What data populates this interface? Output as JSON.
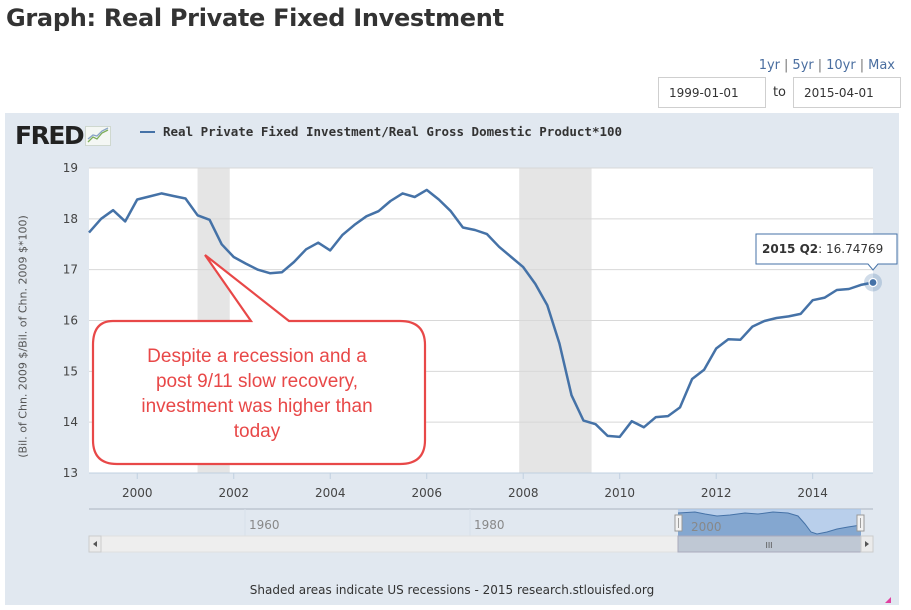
{
  "page": {
    "title": "Graph: Real Private Fixed Investment"
  },
  "range_controls": {
    "links": [
      "1yr",
      "5yr",
      "10yr",
      "Max"
    ],
    "start_date": "1999-01-01",
    "to_label": "to",
    "end_date": "2015-04-01"
  },
  "chart_header": {
    "logo_text": "FRED",
    "logo_icon": "chart-trend-icon"
  },
  "tooltip": {
    "label": "2015 Q2",
    "value": "16.74769"
  },
  "callout": {
    "lines": [
      "Despite a recession and a",
      "post 9/11 slow recovery,",
      "investment was higher than",
      "today"
    ],
    "border_color": "#e84848"
  },
  "navigator": {
    "ticks": [
      "1960",
      "1980",
      "2000"
    ],
    "scroll_grip": "III"
  },
  "footer": {
    "note": "Shaded areas indicate US recessions - 2015 research.stlouisfed.org"
  },
  "colors": {
    "series": "#4572a7",
    "panel_bg": "#e1e8f0",
    "recession": "#e5e5e5",
    "callout": "#e84848"
  },
  "chart_data": {
    "type": "line",
    "title": "Real Private Fixed Investment/Real Gross Domestic Product*100",
    "xlabel": "",
    "ylabel": "(Bil. of Chn. 2009 $/Bil. of Chn. 2009 $*100)",
    "ylim": [
      13,
      19
    ],
    "yticks": [
      13,
      14,
      15,
      16,
      17,
      18,
      19
    ],
    "xlim": [
      1999.0,
      2015.25
    ],
    "xticks": [
      "2000",
      "2002",
      "2004",
      "2006",
      "2008",
      "2010",
      "2012",
      "2014"
    ],
    "grid": true,
    "legend": "top-left",
    "recessions": [
      {
        "start": 2001.25,
        "end": 2001.917
      },
      {
        "start": 2007.917,
        "end": 2009.417
      }
    ],
    "series": [
      {
        "name": "Real Private Fixed Investment/Real Gross Domestic Product*100",
        "start": "1999 Q1",
        "frequency": "quarterly",
        "values": [
          17.73,
          18.0,
          18.17,
          17.95,
          18.38,
          18.44,
          18.5,
          18.45,
          18.4,
          18.07,
          17.98,
          17.5,
          17.25,
          17.12,
          17.0,
          16.93,
          16.95,
          17.15,
          17.4,
          17.53,
          17.38,
          17.68,
          17.88,
          18.05,
          18.15,
          18.35,
          18.5,
          18.43,
          18.57,
          18.38,
          18.15,
          17.83,
          17.78,
          17.7,
          17.45,
          17.25,
          17.05,
          16.72,
          16.3,
          15.55,
          14.53,
          14.03,
          13.96,
          13.73,
          13.71,
          14.02,
          13.9,
          14.1,
          14.12,
          14.29,
          14.85,
          15.03,
          15.45,
          15.63,
          15.62,
          15.88,
          15.99,
          16.05,
          16.08,
          16.13,
          16.4,
          16.45,
          16.6,
          16.62,
          16.7,
          16.74769
        ]
      }
    ],
    "highlighted_point": {
      "x": "2015 Q2",
      "y": 16.74769
    }
  }
}
